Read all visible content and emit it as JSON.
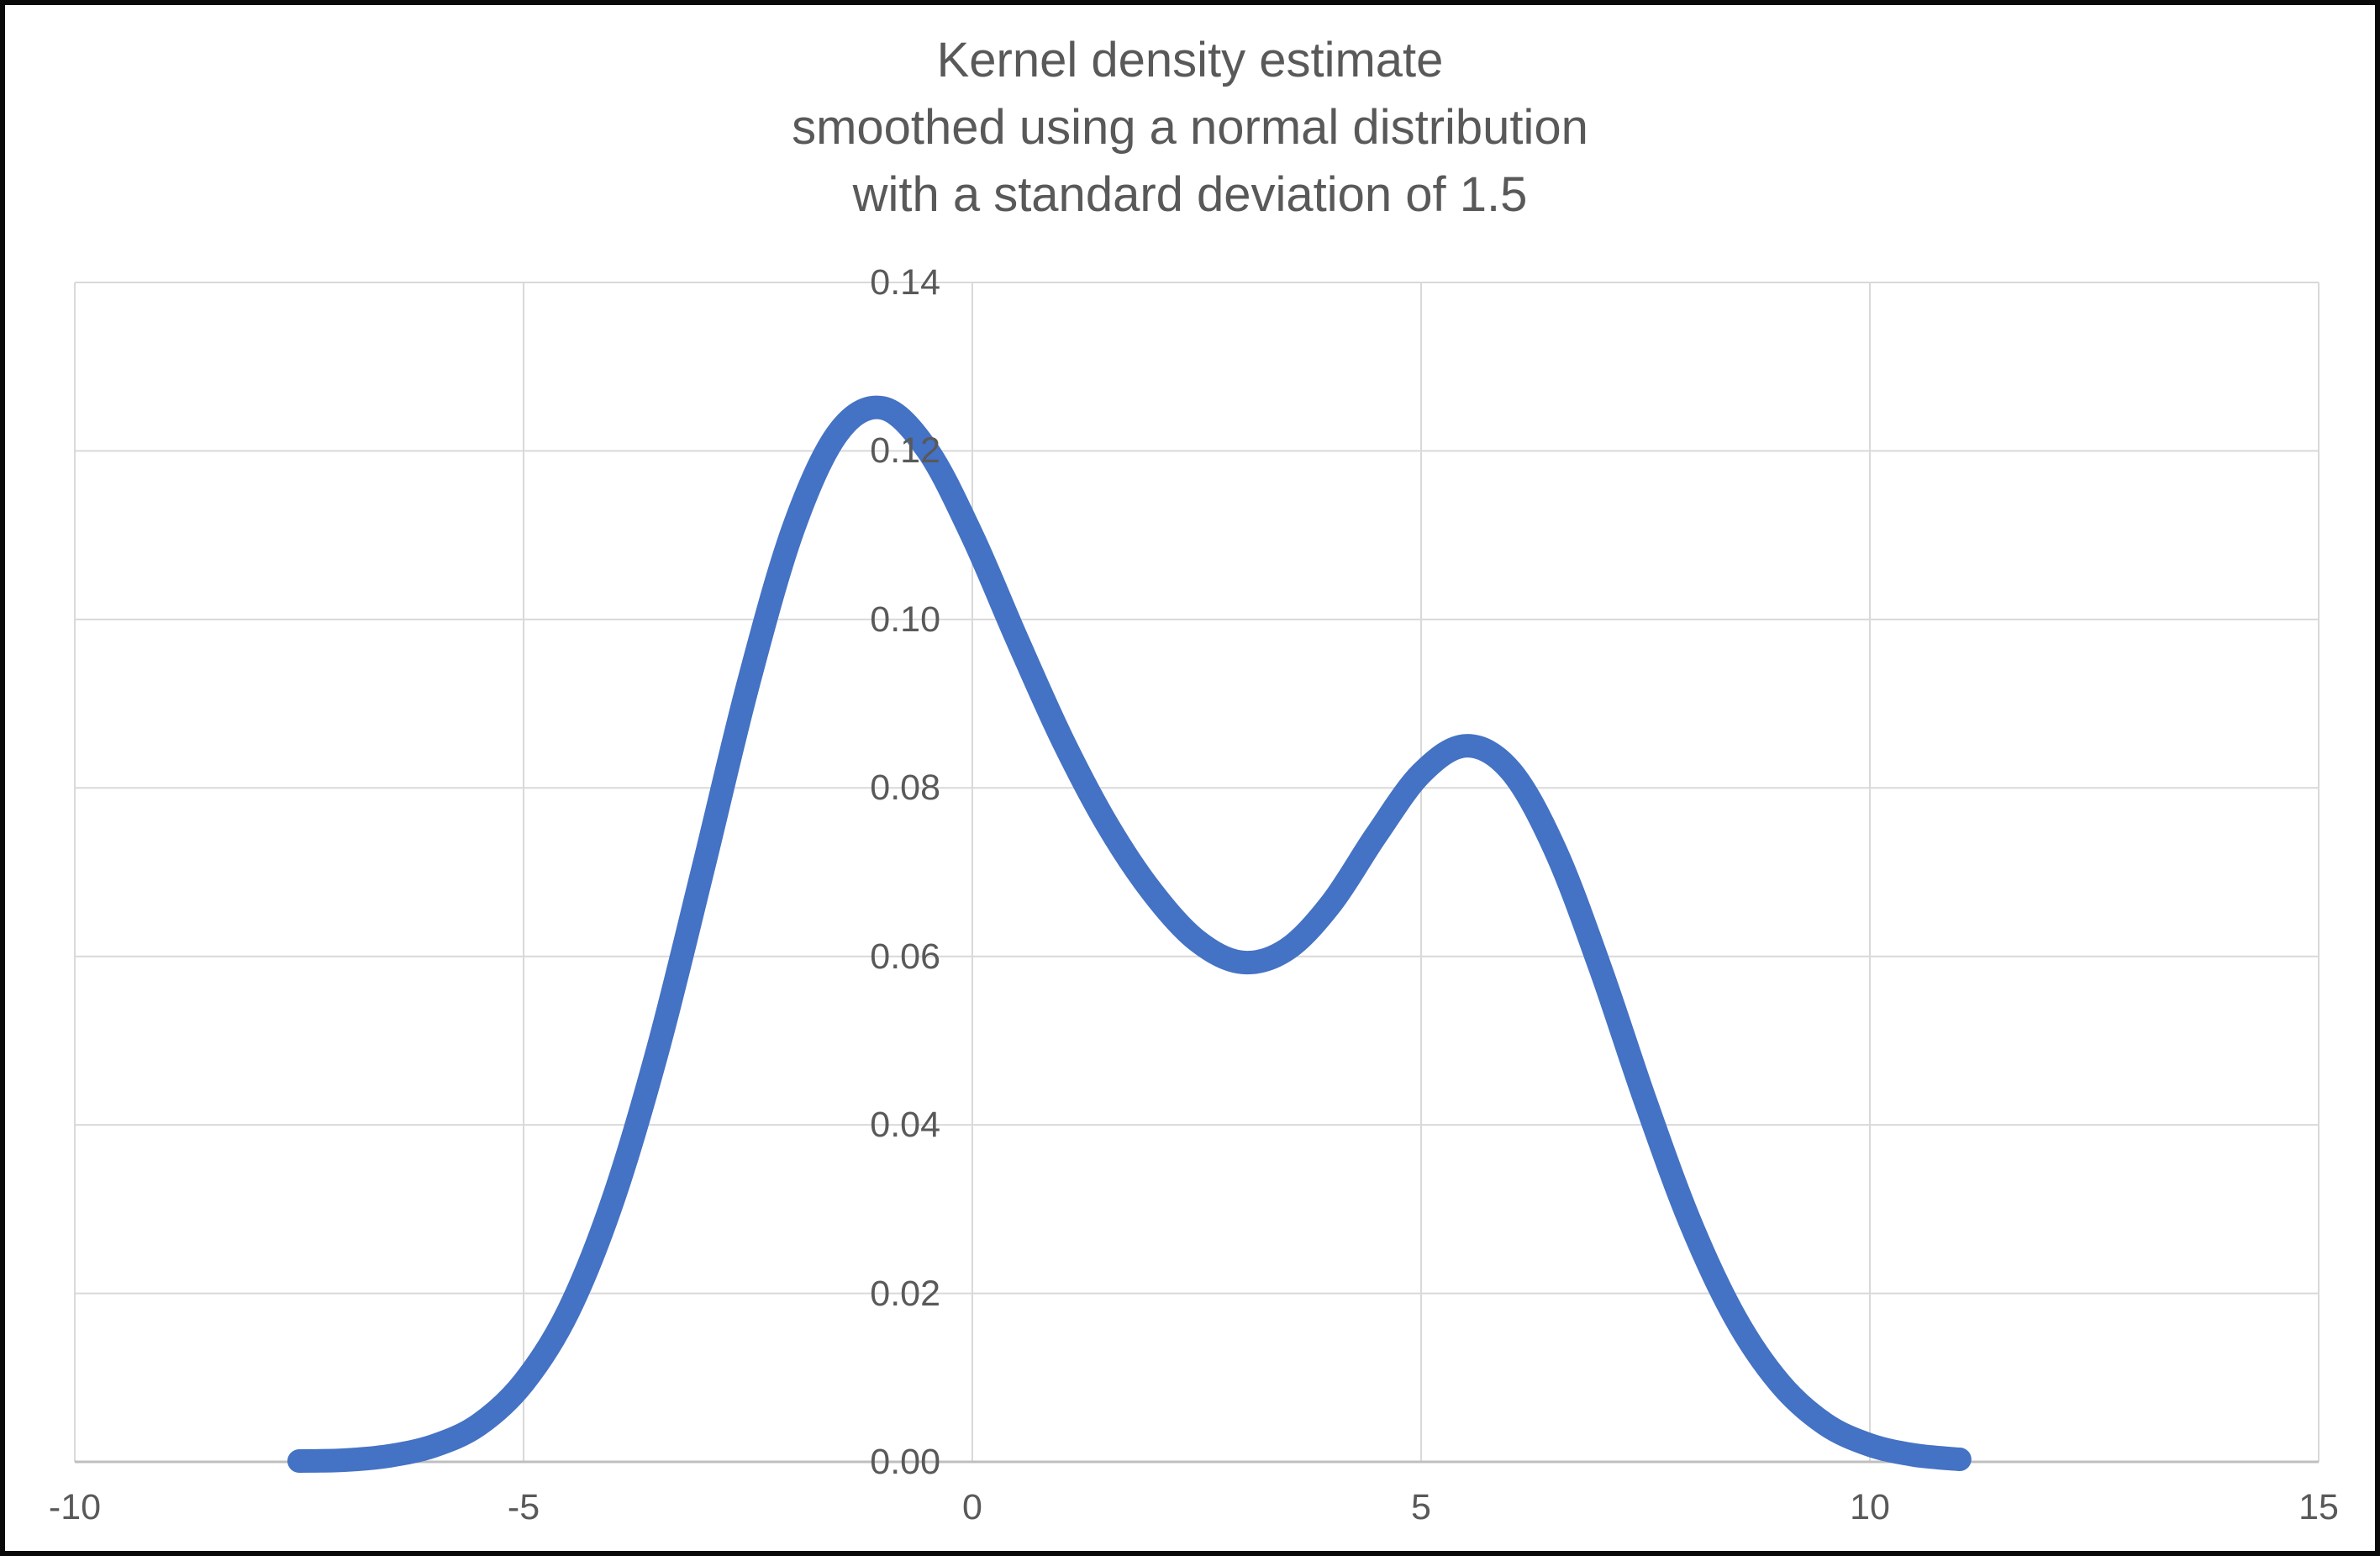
{
  "colors": {
    "line": "#4472C4",
    "gridline": "#D9D9D9",
    "axis_line": "#BFBFBF",
    "tick_text": "#595959",
    "title_text": "#595959",
    "background": "#FFFFFF",
    "frame": "#000000"
  },
  "chart_data": {
    "type": "line",
    "title": "Kernel density estimate smoothed using a normal distribution with a standard deviation of 1.5",
    "title_lines": [
      "Kernel density estimate",
      "smoothed using a normal distribution",
      "with a standard deviation of 1.5"
    ],
    "xlabel": "",
    "ylabel": "",
    "xlim": [
      -10,
      15
    ],
    "ylim": [
      0,
      0.14
    ],
    "x_ticks": [
      -10,
      -5,
      0,
      5,
      10,
      15
    ],
    "y_ticks": [
      "0.00",
      "0.02",
      "0.04",
      "0.06",
      "0.08",
      "0.10",
      "0.12",
      "0.14"
    ],
    "grid": true,
    "legend": false,
    "series": [
      {
        "name": "kernel-density-estimate",
        "x": [
          -7.5,
          -7.0,
          -6.5,
          -6.0,
          -5.5,
          -5.0,
          -4.5,
          -4.0,
          -3.5,
          -3.0,
          -2.5,
          -2.0,
          -1.5,
          -1.0,
          -0.5,
          0.0,
          0.5,
          1.0,
          1.5,
          2.0,
          2.5,
          3.0,
          3.5,
          4.0,
          4.5,
          5.0,
          5.5,
          6.0,
          6.5,
          7.0,
          7.5,
          8.0,
          8.5,
          9.0,
          9.5,
          10.0,
          10.5,
          11.0
        ],
        "y": [
          0.0001,
          0.0002,
          0.0007,
          0.0019,
          0.0044,
          0.0094,
          0.0179,
          0.0312,
          0.0491,
          0.0704,
          0.0922,
          0.1106,
          0.1221,
          0.1251,
          0.1201,
          0.1099,
          0.0976,
          0.0858,
          0.0757,
          0.0677,
          0.0619,
          0.0593,
          0.0608,
          0.0663,
          0.0744,
          0.0817,
          0.085,
          0.082,
          0.0725,
          0.0585,
          0.0428,
          0.0284,
          0.0171,
          0.0093,
          0.0045,
          0.002,
          0.0008,
          0.0003
        ]
      }
    ]
  }
}
